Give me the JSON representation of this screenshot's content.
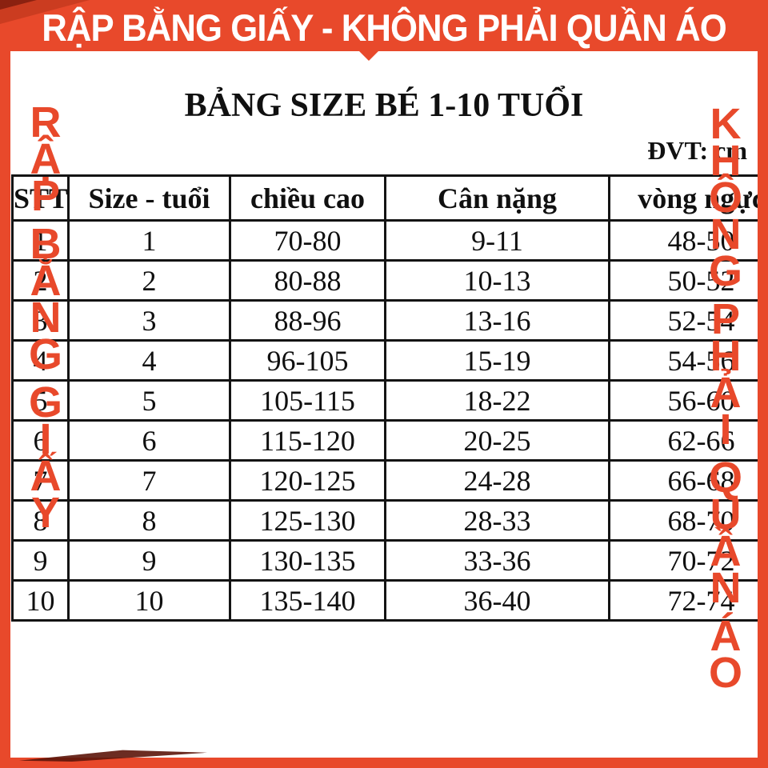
{
  "banner": {
    "text": "RẬP BẰNG GIẤY - KHÔNG PHẢI QUẦN ÁO"
  },
  "watermarks": {
    "left": "RẬP BẰNG GIẤY",
    "right": "KHÔNG PHẢI QUẦN ÁO"
  },
  "title": "BẢNG SIZE BÉ 1-10 TUỔI",
  "unit_label": "ĐVT: cm",
  "table": {
    "headers": [
      "STT",
      "Size - tuổi",
      "chiều cao",
      "Cân nặng",
      "vòng ngực"
    ],
    "rows": [
      [
        "1",
        "1",
        "70-80",
        "9-11",
        "48-50"
      ],
      [
        "2",
        "2",
        "80-88",
        "10-13",
        "50-52"
      ],
      [
        "3",
        "3",
        "88-96",
        "13-16",
        "52-54"
      ],
      [
        "4",
        "4",
        "96-105",
        "15-19",
        "54-56"
      ],
      [
        "5",
        "5",
        "105-115",
        "18-22",
        "56-60"
      ],
      [
        "6",
        "6",
        "115-120",
        "20-25",
        "62-66"
      ],
      [
        "7",
        "7",
        "120-125",
        "24-28",
        "66-68"
      ],
      [
        "8",
        "8",
        "125-130",
        "28-33",
        "68-70"
      ],
      [
        "9",
        "9",
        "130-135",
        "33-36",
        "70-72"
      ],
      [
        "10",
        "10",
        "135-140",
        "36-40",
        "72-74"
      ]
    ]
  },
  "colors": {
    "accent": "#e8492b",
    "table_line": "#141414",
    "text": "#101010",
    "banner_text": "#ffffff"
  }
}
